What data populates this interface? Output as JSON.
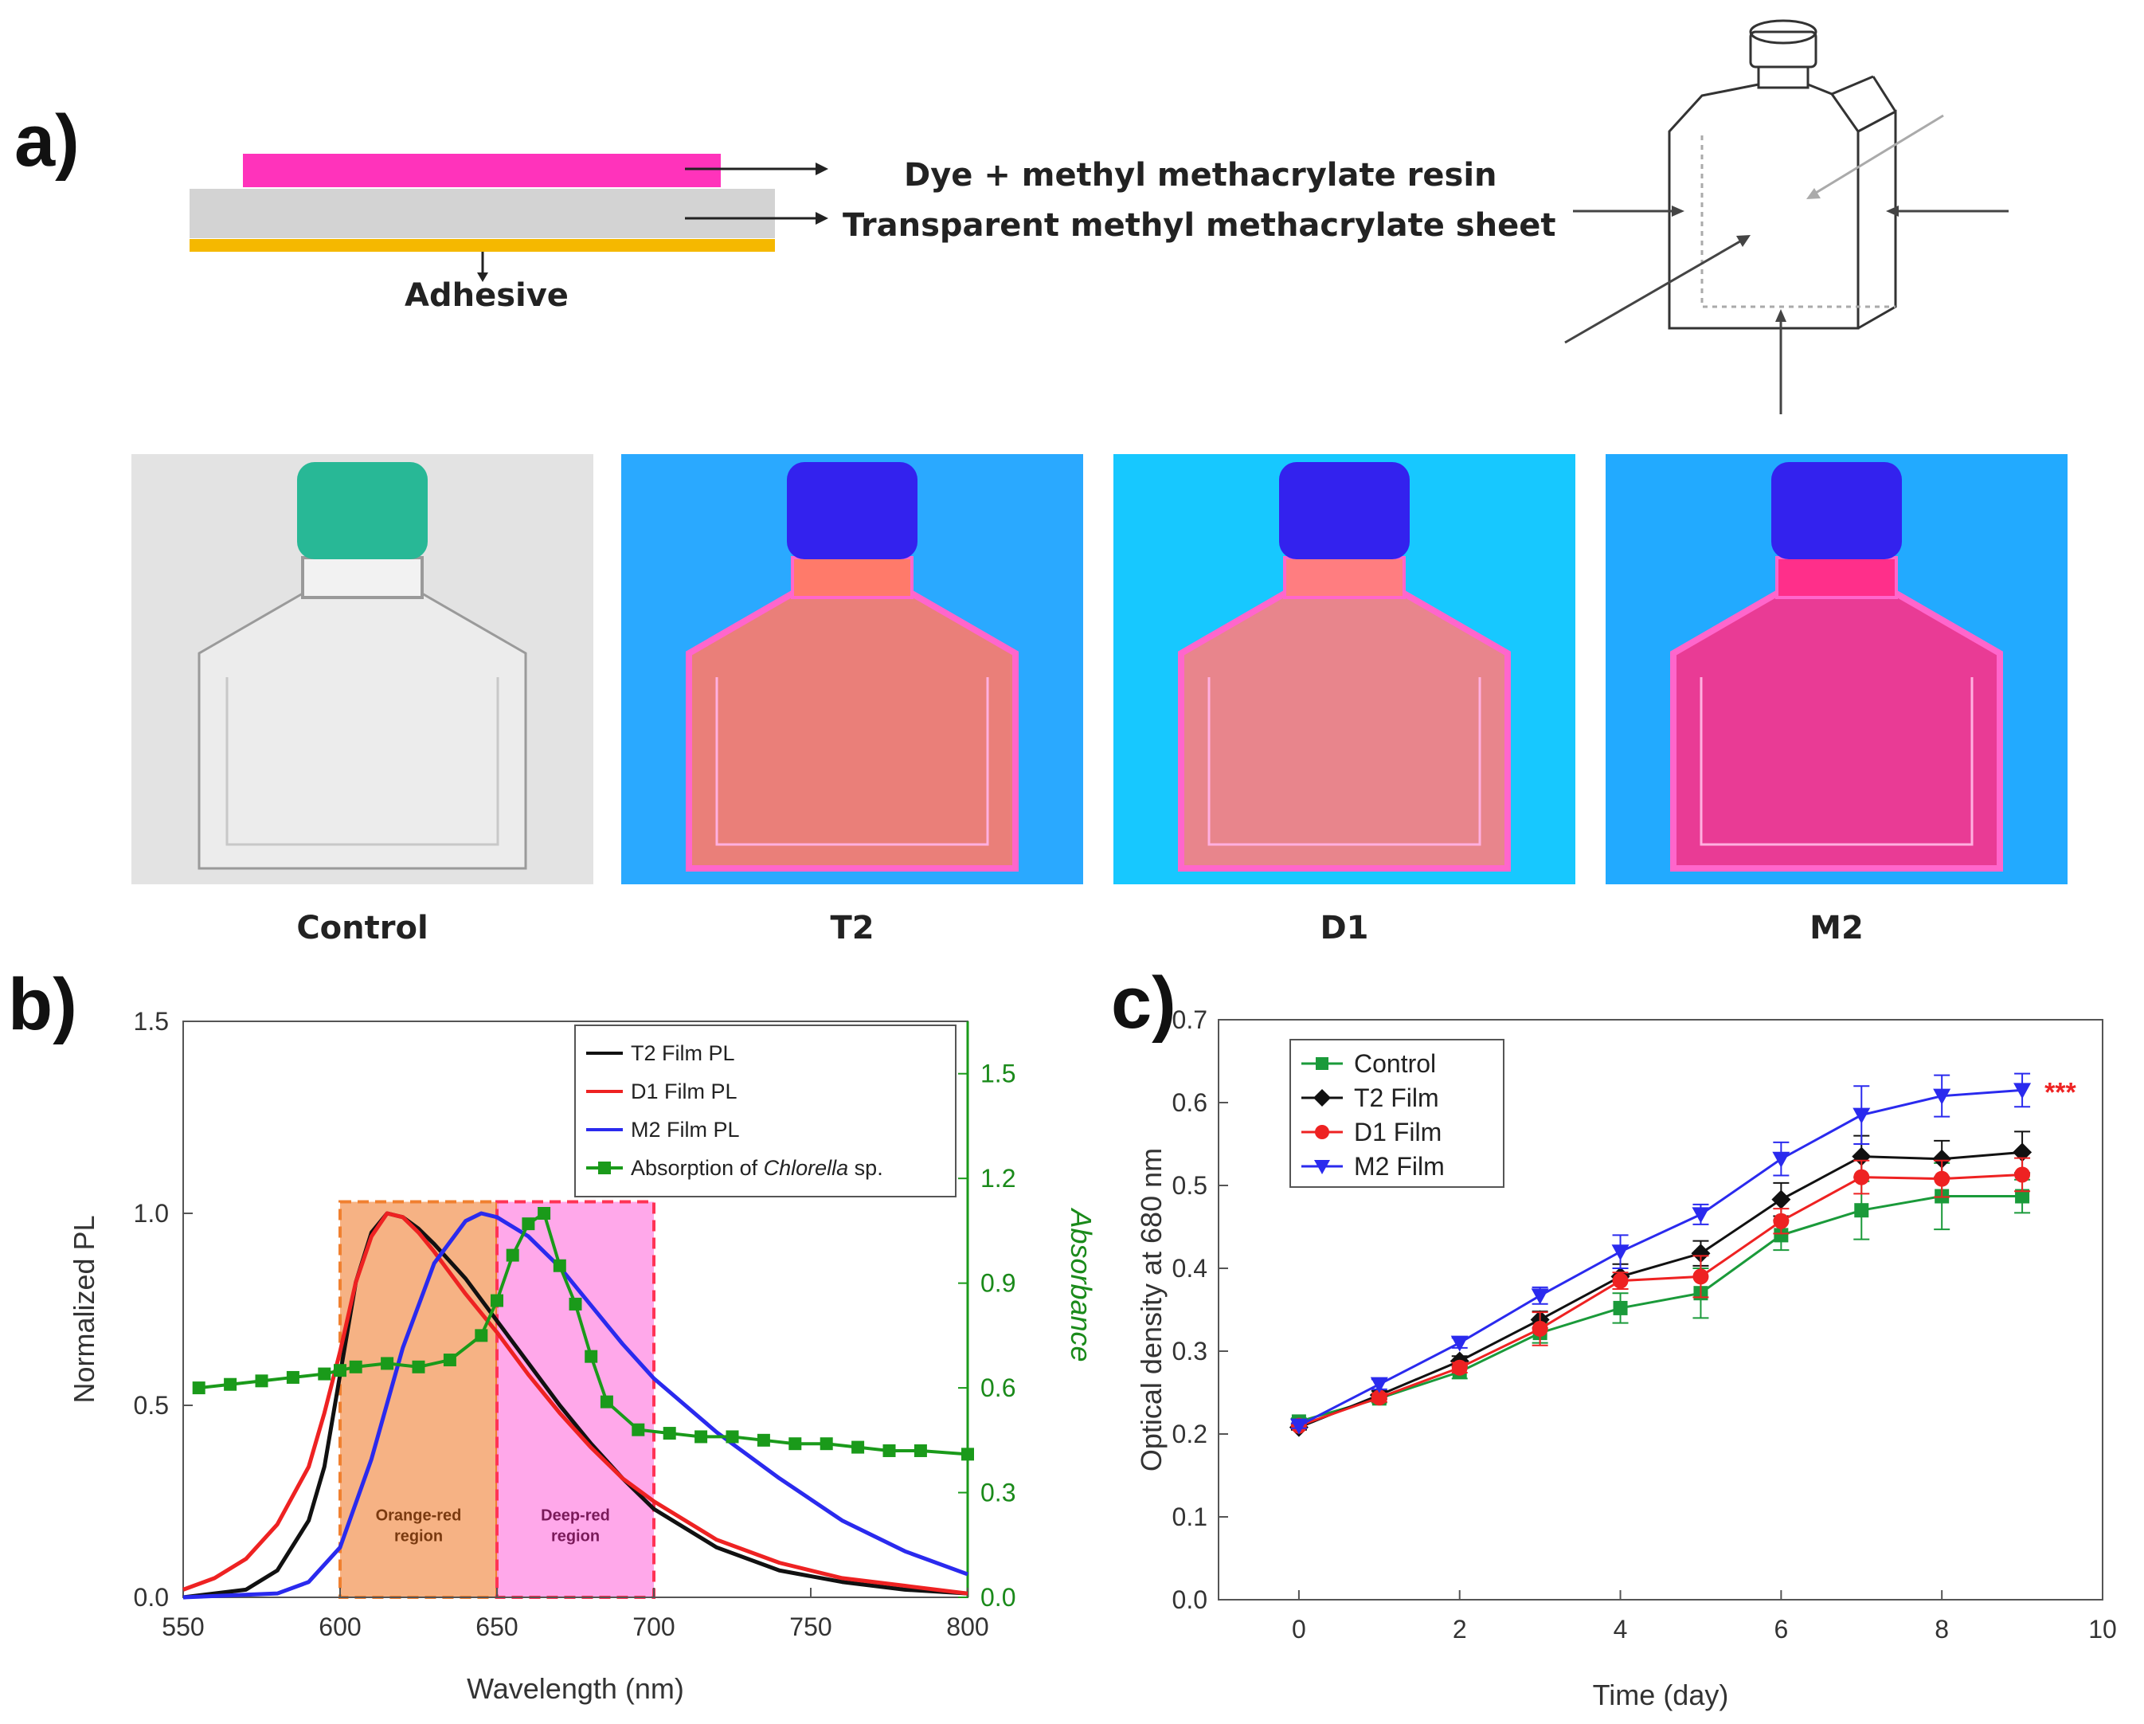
{
  "panel_a": {
    "label": "a)",
    "layers": {
      "dye_label": "Dye + methyl methacrylate resin",
      "sheet_label": "Transparent methyl methacrylate sheet",
      "adhesive_label": "Adhesive"
    },
    "colors": {
      "dye": "#ff33bb",
      "sheet": "#d3d3d3",
      "adhesive": "#f5b800"
    },
    "photos": [
      {
        "caption": "Control",
        "bg": "#e3e3e3",
        "cap": "#28b896",
        "fill": "#f2f2f2"
      },
      {
        "caption": "T2",
        "bg": "#2aa9ff",
        "cap": "#3322ee",
        "fill": "#ff7a6a"
      },
      {
        "caption": "D1",
        "bg": "#17c8ff",
        "cap": "#3322ee",
        "fill": "#ff7d80"
      },
      {
        "caption": "M2",
        "bg": "#22aaff",
        "cap": "#3322ee",
        "fill": "#ff2f8a"
      }
    ]
  },
  "chart_data": [
    {
      "panel": "b)",
      "type": "line",
      "xlabel": "Wavelength (nm)",
      "ylabel": "Normalized PL",
      "y2label": "Absorbance",
      "xlim": [
        550,
        800
      ],
      "ylim": [
        0,
        1.5
      ],
      "y2lim": [
        0,
        1.65
      ],
      "xticks": [
        "550",
        "600",
        "650",
        "700",
        "750",
        "800"
      ],
      "yticks": [
        "0.0",
        "0.5",
        "1.0",
        "1.5"
      ],
      "y2ticks": [
        "0.0",
        "0.3",
        "0.6",
        "0.9",
        "1.2",
        "1.5"
      ],
      "regions": [
        {
          "label_line1": "Orange-red",
          "label_line2": "region",
          "x": [
            600,
            650
          ],
          "color": "#f4a46f",
          "edge": "#f08030"
        },
        {
          "label_line1": "Deep-red",
          "label_line2": "region",
          "x": [
            650,
            700
          ],
          "color": "#ff99e6",
          "edge": "#ff3355"
        }
      ],
      "series": [
        {
          "name": "T2 Film PL",
          "color": "#111111",
          "axis": "left",
          "x": [
            550,
            570,
            580,
            590,
            595,
            600,
            605,
            610,
            615,
            620,
            625,
            630,
            640,
            650,
            660,
            670,
            680,
            690,
            700,
            720,
            740,
            760,
            780,
            800
          ],
          "y": [
            0.0,
            0.02,
            0.07,
            0.2,
            0.34,
            0.58,
            0.82,
            0.95,
            1.0,
            0.99,
            0.96,
            0.92,
            0.83,
            0.72,
            0.61,
            0.5,
            0.4,
            0.31,
            0.23,
            0.13,
            0.07,
            0.04,
            0.02,
            0.01
          ]
        },
        {
          "name": "D1 Film PL",
          "color": "#ee2222",
          "axis": "left",
          "x": [
            550,
            560,
            570,
            580,
            590,
            595,
            600,
            605,
            610,
            615,
            620,
            625,
            630,
            640,
            650,
            660,
            670,
            680,
            690,
            700,
            720,
            740,
            760,
            780,
            800
          ],
          "y": [
            0.02,
            0.05,
            0.1,
            0.19,
            0.34,
            0.48,
            0.64,
            0.82,
            0.94,
            1.0,
            0.99,
            0.95,
            0.9,
            0.79,
            0.69,
            0.58,
            0.48,
            0.39,
            0.31,
            0.25,
            0.15,
            0.09,
            0.05,
            0.03,
            0.01
          ]
        },
        {
          "name": "M2 Film PL",
          "color": "#2a2aee",
          "axis": "left",
          "x": [
            550,
            580,
            590,
            600,
            610,
            620,
            630,
            640,
            645,
            650,
            660,
            670,
            680,
            690,
            700,
            710,
            720,
            740,
            760,
            780,
            800
          ],
          "y": [
            0.0,
            0.01,
            0.04,
            0.13,
            0.36,
            0.65,
            0.87,
            0.98,
            1.0,
            0.99,
            0.94,
            0.86,
            0.76,
            0.66,
            0.57,
            0.5,
            0.43,
            0.31,
            0.2,
            0.12,
            0.06
          ]
        },
        {
          "name": "Absorption of Chlorella sp.",
          "color": "#1a9a1a",
          "axis": "right",
          "marker": "square",
          "x": [
            555,
            565,
            575,
            585,
            595,
            600,
            605,
            615,
            625,
            635,
            645,
            650,
            655,
            660,
            665,
            670,
            675,
            680,
            685,
            695,
            705,
            715,
            725,
            735,
            745,
            755,
            765,
            775,
            785,
            800
          ],
          "y": [
            0.6,
            0.61,
            0.62,
            0.63,
            0.64,
            0.65,
            0.66,
            0.67,
            0.66,
            0.68,
            0.75,
            0.85,
            0.98,
            1.07,
            1.1,
            0.95,
            0.84,
            0.69,
            0.56,
            0.48,
            0.47,
            0.46,
            0.46,
            0.45,
            0.44,
            0.44,
            0.43,
            0.42,
            0.42,
            0.41
          ]
        }
      ]
    },
    {
      "panel": "c)",
      "type": "line",
      "xlabel": "Time (day)",
      "ylabel": "Optical density at 680 nm",
      "xlim": [
        -1,
        10
      ],
      "ylim": [
        0,
        0.7
      ],
      "xticks": [
        "0",
        "2",
        "4",
        "6",
        "8",
        "10"
      ],
      "yticks": [
        "0.0",
        "0.1",
        "0.2",
        "0.3",
        "0.4",
        "0.5",
        "0.6",
        "0.7"
      ],
      "annotation": "***",
      "annotation_color": "#ee2222",
      "x": [
        0,
        1,
        2,
        3,
        4,
        5,
        6,
        7,
        8,
        9
      ],
      "series": [
        {
          "name": "Control",
          "color": "#1a9a3a",
          "marker": "square",
          "y": [
            0.215,
            0.243,
            0.275,
            0.322,
            0.352,
            0.37,
            0.44,
            0.47,
            0.487,
            0.487
          ],
          "err": [
            0.004,
            0.005,
            0.008,
            0.012,
            0.018,
            0.03,
            0.018,
            0.035,
            0.04,
            0.02
          ]
        },
        {
          "name": "T2 Film",
          "color": "#111111",
          "marker": "diamond",
          "y": [
            0.208,
            0.247,
            0.288,
            0.338,
            0.39,
            0.418,
            0.483,
            0.535,
            0.532,
            0.54
          ],
          "err": [
            0.003,
            0.005,
            0.006,
            0.01,
            0.015,
            0.015,
            0.02,
            0.025,
            0.022,
            0.025
          ]
        },
        {
          "name": "D1 Film",
          "color": "#ee2222",
          "marker": "circle",
          "y": [
            0.21,
            0.244,
            0.28,
            0.327,
            0.385,
            0.39,
            0.457,
            0.51,
            0.508,
            0.513
          ],
          "err": [
            0.003,
            0.005,
            0.006,
            0.02,
            0.01,
            0.025,
            0.015,
            0.02,
            0.022,
            0.02
          ]
        },
        {
          "name": "M2 Film",
          "color": "#2a2aee",
          "marker": "triangle-down",
          "y": [
            0.21,
            0.26,
            0.31,
            0.367,
            0.42,
            0.465,
            0.532,
            0.585,
            0.608,
            0.615
          ],
          "err": [
            0.003,
            0.006,
            0.006,
            0.01,
            0.02,
            0.012,
            0.02,
            0.035,
            0.025,
            0.02
          ]
        }
      ]
    }
  ]
}
